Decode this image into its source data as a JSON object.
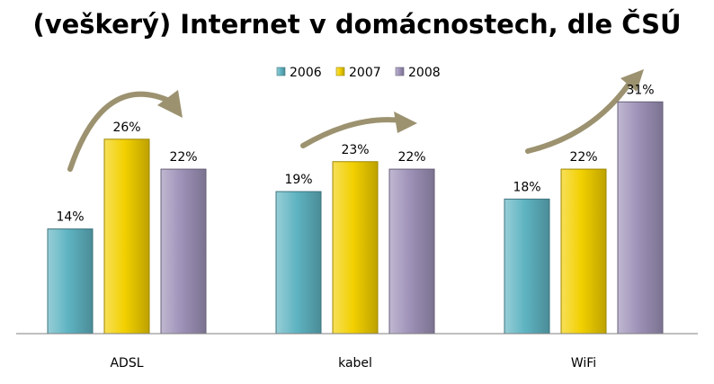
{
  "chart_data": {
    "type": "bar",
    "title": "(veškerý) Internet v domácnostech, dle ČSÚ",
    "categories": [
      "ADSL",
      "kabel",
      "WiFi"
    ],
    "series": [
      {
        "name": "2006",
        "values": [
          14,
          19,
          18
        ],
        "labels": [
          "14%",
          "19%",
          "18%"
        ],
        "color": "#5fb4c2"
      },
      {
        "name": "2007",
        "values": [
          26,
          23,
          22
        ],
        "labels": [
          "26%",
          "23%",
          "22%"
        ],
        "color": "#f2d000"
      },
      {
        "name": "2008",
        "values": [
          22,
          22,
          31
        ],
        "labels": [
          "22%",
          "22%",
          "31%"
        ],
        "color": "#9e92b8"
      }
    ],
    "ylim": [
      0,
      35
    ],
    "value_unit": "%",
    "legend_position": "top",
    "grid": false,
    "annotation_color": "#9c9270"
  }
}
